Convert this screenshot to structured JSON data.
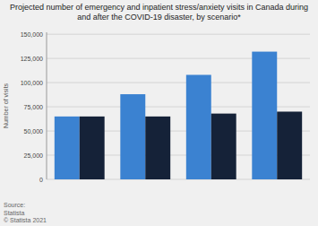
{
  "chart_data": {
    "type": "bar",
    "title": "Projected number of emergency and inpatient stress/anxiety visits in Canada during\nand after the COVID-19 disaster, by scenario*",
    "y_label": "Number of visits",
    "categories": [
      null,
      null,
      null,
      null
    ],
    "series": [
      {
        "color": "#3b82d1",
        "values": [
          65000,
          88000,
          108000,
          132000
        ]
      },
      {
        "color": "#152238",
        "values": [
          65000,
          65000,
          68000,
          70000
        ]
      }
    ],
    "ylim": [
      0,
      152000
    ],
    "yticks": [
      0,
      {
        "value": 25000,
        "label": "25,000"
      },
      {
        "value": 50000,
        "label": "50,000"
      },
      {
        "value": 75000,
        "label": "75,000"
      },
      {
        "value": 100000,
        "label": "100,000"
      },
      {
        "value": 125000,
        "label": "125,000"
      },
      {
        "value": 150000,
        "label": "150,000"
      }
    ],
    "grid": true,
    "tick_labels": "y",
    "annotations": [
      "Source:\nStatista\n© Statista 2021"
    ]
  }
}
